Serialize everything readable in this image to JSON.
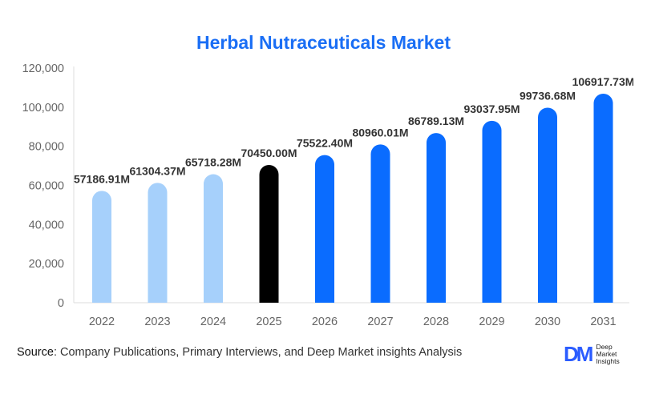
{
  "chart_data": {
    "type": "bar",
    "title": "Herbal Nutraceuticals Market",
    "categories": [
      "2022",
      "2023",
      "2024",
      "2025",
      "2026",
      "2027",
      "2028",
      "2029",
      "2030",
      "2031"
    ],
    "values": [
      57186.91,
      61304.37,
      65718.28,
      70450.0,
      75522.4,
      80960.01,
      86789.13,
      93037.95,
      99736.68,
      106917.73
    ],
    "labels": [
      "57186.91M",
      "61304.37M",
      "65718.28M",
      "70450.00M",
      "75522.40M",
      "80960.01M",
      "86789.13M",
      "93037.95M",
      "99736.68M",
      "106917.73M"
    ],
    "bar_colors": [
      "#a6d0fb",
      "#a6d0fb",
      "#a6d0fb",
      "#000000",
      "#0a6cff",
      "#0a6cff",
      "#0a6cff",
      "#0a6cff",
      "#0a6cff",
      "#0a6cff"
    ],
    "yticks": [
      0,
      20000,
      40000,
      60000,
      80000,
      100000,
      120000
    ],
    "ytick_labels": [
      "0",
      "20,000",
      "40,000",
      "60,000",
      "80,000",
      "100,000",
      "120,000"
    ],
    "ylim": [
      0,
      120000
    ],
    "xlabel": "",
    "ylabel": "",
    "grid": false,
    "legend": "none"
  },
  "footer": {
    "source_label": "Source",
    "source_text": ": Company Publications, Primary Interviews, and Deep Market insights Analysis",
    "logo_mark": "DM",
    "logo_lines": [
      "Deep",
      "Market",
      "Insights"
    ]
  }
}
